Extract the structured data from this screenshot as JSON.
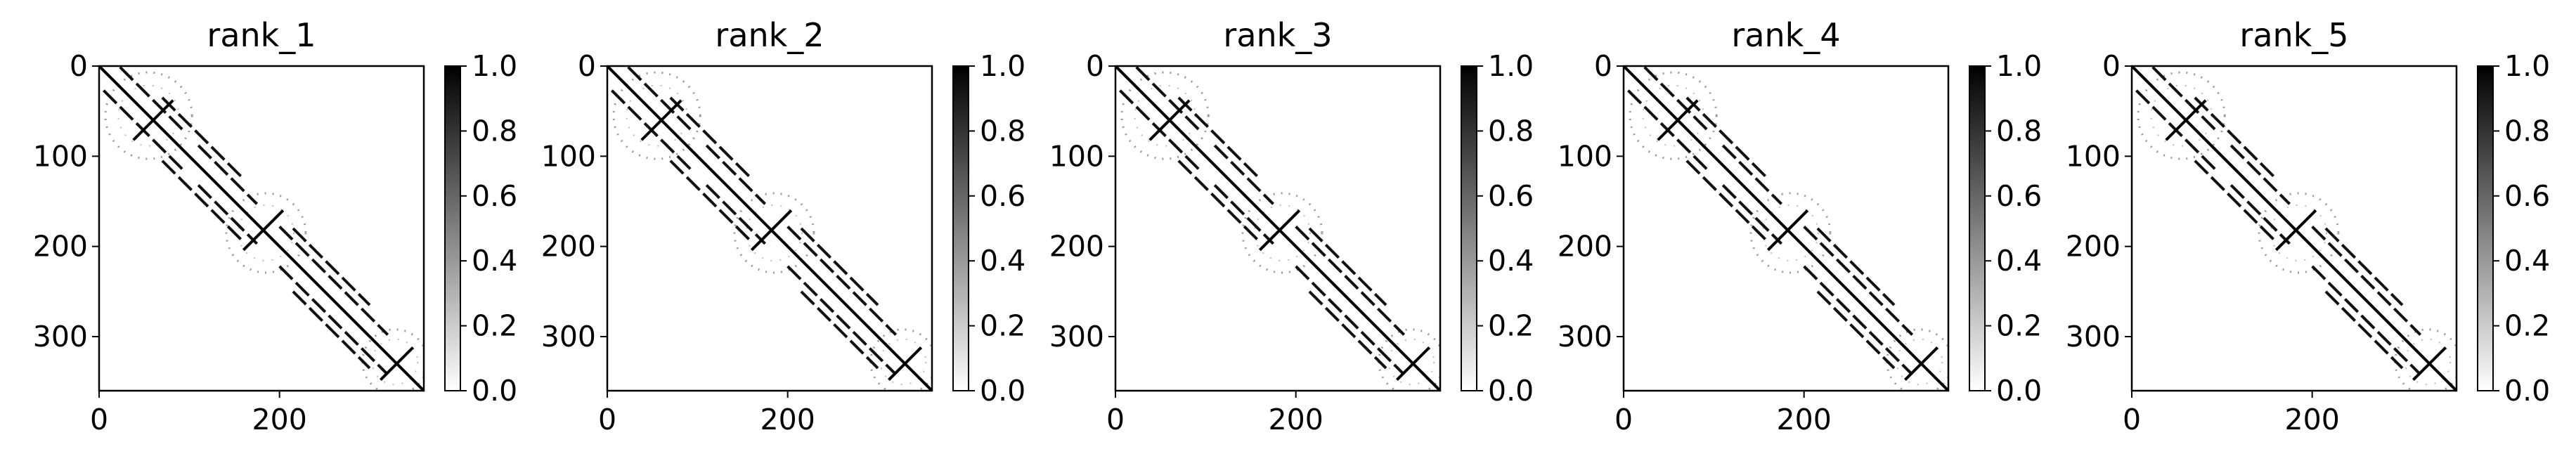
{
  "chart_data": [
    {
      "type": "heatmap",
      "title": "rank_1",
      "colormap": "Greys",
      "matrix_size": 360,
      "xlim": [
        0,
        360
      ],
      "ylim": [
        360,
        0
      ],
      "xticks": [
        "0",
        "200"
      ],
      "yticks": [
        "0",
        "100",
        "200",
        "300"
      ],
      "colorbar": {
        "range": [
          0.0,
          1.0
        ],
        "ticks": [
          "0.0",
          "0.2",
          "0.4",
          "0.6",
          "0.8",
          "1.0"
        ]
      },
      "structure": {
        "diagonal": true,
        "parallel_bands": [
          {
            "offset": 22,
            "segments": [
              [
                5,
                95
              ],
              [
                110,
                175
              ],
              [
                200,
                320
              ]
            ]
          },
          {
            "offset": 35,
            "segments": [
              [
                70,
                160
              ],
              [
                215,
                300
              ]
            ]
          }
        ],
        "crossings": [
          {
            "center": 60,
            "arm": 22
          },
          {
            "center": 182,
            "arm": 22
          },
          {
            "center": 330,
            "arm": 18
          }
        ],
        "halos": [
          {
            "center": 55,
            "radius": 48
          },
          {
            "center": 185,
            "radius": 44
          },
          {
            "center": 328,
            "radius": 36
          }
        ]
      }
    },
    {
      "type": "heatmap",
      "title": "rank_2",
      "colormap": "Greys",
      "matrix_size": 360,
      "xlim": [
        0,
        360
      ],
      "ylim": [
        360,
        0
      ],
      "xticks": [
        "0",
        "200"
      ],
      "yticks": [
        "0",
        "100",
        "200",
        "300"
      ],
      "colorbar": {
        "range": [
          0.0,
          1.0
        ],
        "ticks": [
          "0.0",
          "0.2",
          "0.4",
          "0.6",
          "0.8",
          "1.0"
        ]
      },
      "structure": {
        "diagonal": true,
        "parallel_bands": [
          {
            "offset": 22,
            "segments": [
              [
                5,
                95
              ],
              [
                110,
                175
              ],
              [
                200,
                320
              ]
            ]
          },
          {
            "offset": 35,
            "segments": [
              [
                70,
                160
              ],
              [
                215,
                300
              ]
            ]
          }
        ],
        "crossings": [
          {
            "center": 60,
            "arm": 22
          },
          {
            "center": 182,
            "arm": 22
          },
          {
            "center": 330,
            "arm": 18
          }
        ],
        "halos": [
          {
            "center": 55,
            "radius": 48
          },
          {
            "center": 185,
            "radius": 44
          },
          {
            "center": 328,
            "radius": 36
          }
        ]
      }
    },
    {
      "type": "heatmap",
      "title": "rank_3",
      "colormap": "Greys",
      "matrix_size": 360,
      "xlim": [
        0,
        360
      ],
      "ylim": [
        360,
        0
      ],
      "xticks": [
        "0",
        "200"
      ],
      "yticks": [
        "0",
        "100",
        "200",
        "300"
      ],
      "colorbar": {
        "range": [
          0.0,
          1.0
        ],
        "ticks": [
          "0.0",
          "0.2",
          "0.4",
          "0.6",
          "0.8",
          "1.0"
        ]
      },
      "structure": {
        "diagonal": true,
        "parallel_bands": [
          {
            "offset": 22,
            "segments": [
              [
                5,
                95
              ],
              [
                110,
                175
              ],
              [
                200,
                320
              ]
            ]
          },
          {
            "offset": 35,
            "segments": [
              [
                70,
                160
              ],
              [
                215,
                300
              ]
            ]
          }
        ],
        "crossings": [
          {
            "center": 60,
            "arm": 22
          },
          {
            "center": 182,
            "arm": 22
          },
          {
            "center": 330,
            "arm": 18
          }
        ],
        "halos": [
          {
            "center": 55,
            "radius": 48
          },
          {
            "center": 185,
            "radius": 44
          },
          {
            "center": 328,
            "radius": 36
          }
        ]
      }
    },
    {
      "type": "heatmap",
      "title": "rank_4",
      "colormap": "Greys",
      "matrix_size": 360,
      "xlim": [
        0,
        360
      ],
      "ylim": [
        360,
        0
      ],
      "xticks": [
        "0",
        "200"
      ],
      "yticks": [
        "0",
        "100",
        "200",
        "300"
      ],
      "colorbar": {
        "range": [
          0.0,
          1.0
        ],
        "ticks": [
          "0.0",
          "0.2",
          "0.4",
          "0.6",
          "0.8",
          "1.0"
        ]
      },
      "structure": {
        "diagonal": true,
        "parallel_bands": [
          {
            "offset": 22,
            "segments": [
              [
                5,
                95
              ],
              [
                110,
                175
              ],
              [
                200,
                320
              ]
            ]
          },
          {
            "offset": 35,
            "segments": [
              [
                70,
                160
              ],
              [
                215,
                300
              ]
            ]
          }
        ],
        "crossings": [
          {
            "center": 60,
            "arm": 22
          },
          {
            "center": 182,
            "arm": 22
          },
          {
            "center": 330,
            "arm": 18
          }
        ],
        "halos": [
          {
            "center": 55,
            "radius": 48
          },
          {
            "center": 185,
            "radius": 44
          },
          {
            "center": 328,
            "radius": 36
          }
        ]
      }
    },
    {
      "type": "heatmap",
      "title": "rank_5",
      "colormap": "Greys",
      "matrix_size": 360,
      "xlim": [
        0,
        360
      ],
      "ylim": [
        360,
        0
      ],
      "xticks": [
        "0",
        "200"
      ],
      "yticks": [
        "0",
        "100",
        "200",
        "300"
      ],
      "colorbar": {
        "range": [
          0.0,
          1.0
        ],
        "ticks": [
          "0.0",
          "0.2",
          "0.4",
          "0.6",
          "0.8",
          "1.0"
        ]
      },
      "structure": {
        "diagonal": true,
        "parallel_bands": [
          {
            "offset": 22,
            "segments": [
              [
                5,
                95
              ],
              [
                110,
                175
              ],
              [
                200,
                320
              ]
            ]
          },
          {
            "offset": 35,
            "segments": [
              [
                70,
                160
              ],
              [
                215,
                300
              ]
            ]
          }
        ],
        "crossings": [
          {
            "center": 60,
            "arm": 22
          },
          {
            "center": 182,
            "arm": 22
          },
          {
            "center": 330,
            "arm": 18
          }
        ],
        "halos": [
          {
            "center": 55,
            "radius": 48
          },
          {
            "center": 185,
            "radius": 44
          },
          {
            "center": 328,
            "radius": 36
          }
        ]
      }
    }
  ]
}
